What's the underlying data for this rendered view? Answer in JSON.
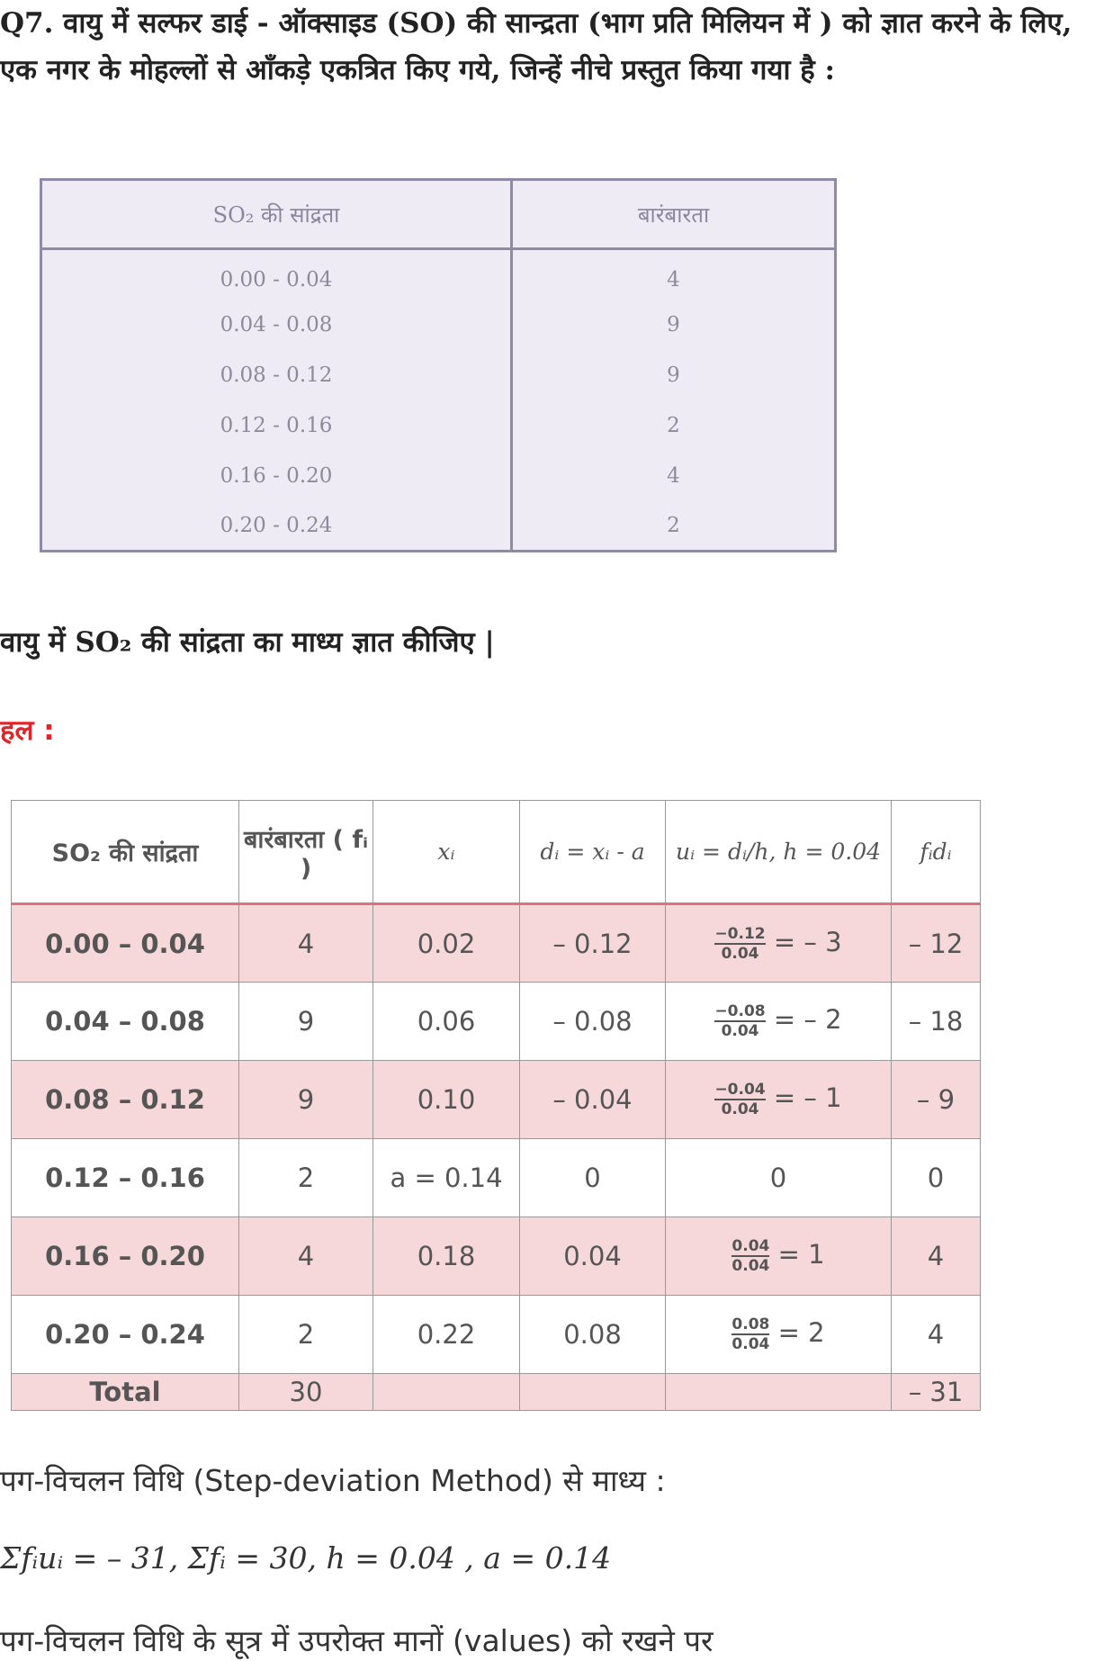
{
  "question": "Q7. वायु में सल्फर डाई - ऑक्साइड (SO) की सान्द्रता (भाग प्रति मिलियन में ) को ज्ञात करने के लिए, एक नगर के मोहल्लों से आँकड़े एकत्रित किए गये, जिन्हें नीचे प्रस्तुत किया गया है :",
  "table1": {
    "headers": [
      "SO₂ की सांद्रता",
      "बारंबारता"
    ],
    "rows": [
      [
        "0.00 - 0.04",
        "4"
      ],
      [
        "0.04 - 0.08",
        "9"
      ],
      [
        "0.08 - 0.12",
        "9"
      ],
      [
        "0.12 - 0.16",
        "2"
      ],
      [
        "0.16 - 0.20",
        "4"
      ],
      [
        "0.20 - 0.24",
        "2"
      ]
    ]
  },
  "task": "वायु में SO₂ की सांद्रता का माध्य ज्ञात कीजिए |",
  "solution_label": "हल :",
  "table2": {
    "headers": [
      "SO₂ की सांद्रता",
      "बारंबारता ( fᵢ )",
      "xᵢ",
      "dᵢ = xᵢ - a",
      "uᵢ = dᵢ/h, h = 0.04",
      "fᵢdᵢ"
    ],
    "rows": [
      {
        "c": "0.00 – 0.04",
        "f": "4",
        "x": "0.02",
        "d": "– 0.12",
        "num": "−0.12",
        "den": "0.04",
        "u": "= – 3",
        "fd": "– 12"
      },
      {
        "c": "0.04 – 0.08",
        "f": "9",
        "x": "0.06",
        "d": "– 0.08",
        "num": "−0.08",
        "den": "0.04",
        "u": "= – 2",
        "fd": "– 18"
      },
      {
        "c": "0.08 – 0.12",
        "f": "9",
        "x": "0.10",
        "d": "– 0.04",
        "num": "−0.04",
        "den": "0.04",
        "u": "= – 1",
        "fd": "– 9"
      },
      {
        "c": "0.12 – 0.16",
        "f": "2",
        "x": "a = 0.14",
        "d": "0",
        "num": "",
        "den": "",
        "u": "0",
        "fd": "0"
      },
      {
        "c": "0.16 – 0.20",
        "f": "4",
        "x": "0.18",
        "d": "0.04",
        "num": "0.04",
        "den": "0.04",
        "u": "= 1",
        "fd": "4"
      },
      {
        "c": "0.20 – 0.24",
        "f": "2",
        "x": "0.22",
        "d": "0.08",
        "num": "0.08",
        "den": "0.04",
        "u": "=  2",
        "fd": "4"
      }
    ],
    "total": {
      "label": "Total",
      "f": "30",
      "fd": "– 31"
    }
  },
  "line1": "पग-विचलन विधि (Step-deviation Method) से माध्य :",
  "line2": "Σfᵢuᵢ = – 31, Σfᵢ = 30, h = 0.04 , a = 0.14",
  "line3": "पग-विचलन विधि के सूत्र में उपरोक्त मानों (values) को रखने पर"
}
